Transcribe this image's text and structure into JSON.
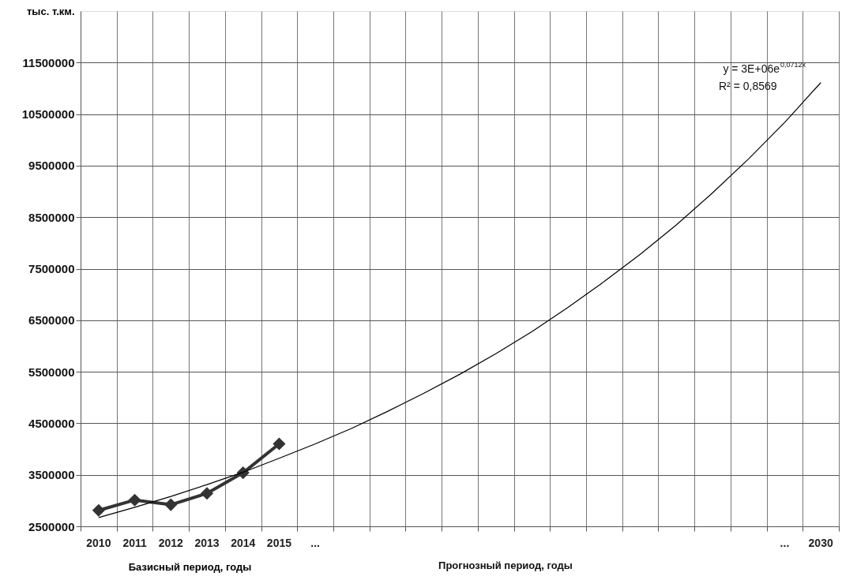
{
  "chart_data": {
    "type": "line",
    "ylabel": "тыс. т.км.",
    "xlabel": "Базисный период, годы",
    "categories": [
      "2010",
      "2011",
      "2012",
      "2013",
      "2014",
      "2015",
      "...",
      null,
      null,
      null,
      null,
      null,
      null,
      null,
      null,
      null,
      null,
      null,
      null,
      "...",
      "2030"
    ],
    "series": [
      {
        "type": "line",
        "color": "#333333",
        "marker": "diamond",
        "values": [
          2810000,
          3010000,
          2920000,
          3140000,
          3540000,
          4100000,
          null,
          null,
          null,
          null,
          null,
          null,
          null,
          null,
          null,
          null,
          null,
          null,
          null,
          null,
          null
        ]
      },
      {
        "type": "line",
        "color": "#000000",
        "marker": "none",
        "values": [
          2670000,
          2870000,
          3080000,
          3310000,
          3550000,
          3820000,
          4100000,
          4400000,
          4730000,
          5080000,
          5450000,
          5850000,
          6280000,
          6750000,
          7250000,
          7780000,
          8350000,
          8970000,
          9630000,
          10340000,
          11110000
        ]
      }
    ],
    "ylim": [
      2500000,
      12500000
    ],
    "yticks": [
      2500000,
      3500000,
      4500000,
      5500000,
      6500000,
      7500000,
      8500000,
      9500000,
      10500000,
      11500000
    ],
    "grid": true,
    "legend": false,
    "annotations": [
      "y = 3E+06e$^{0,0712x}$",
      "R² = 0,8569",
      "Прогнозный период, годы"
    ]
  }
}
